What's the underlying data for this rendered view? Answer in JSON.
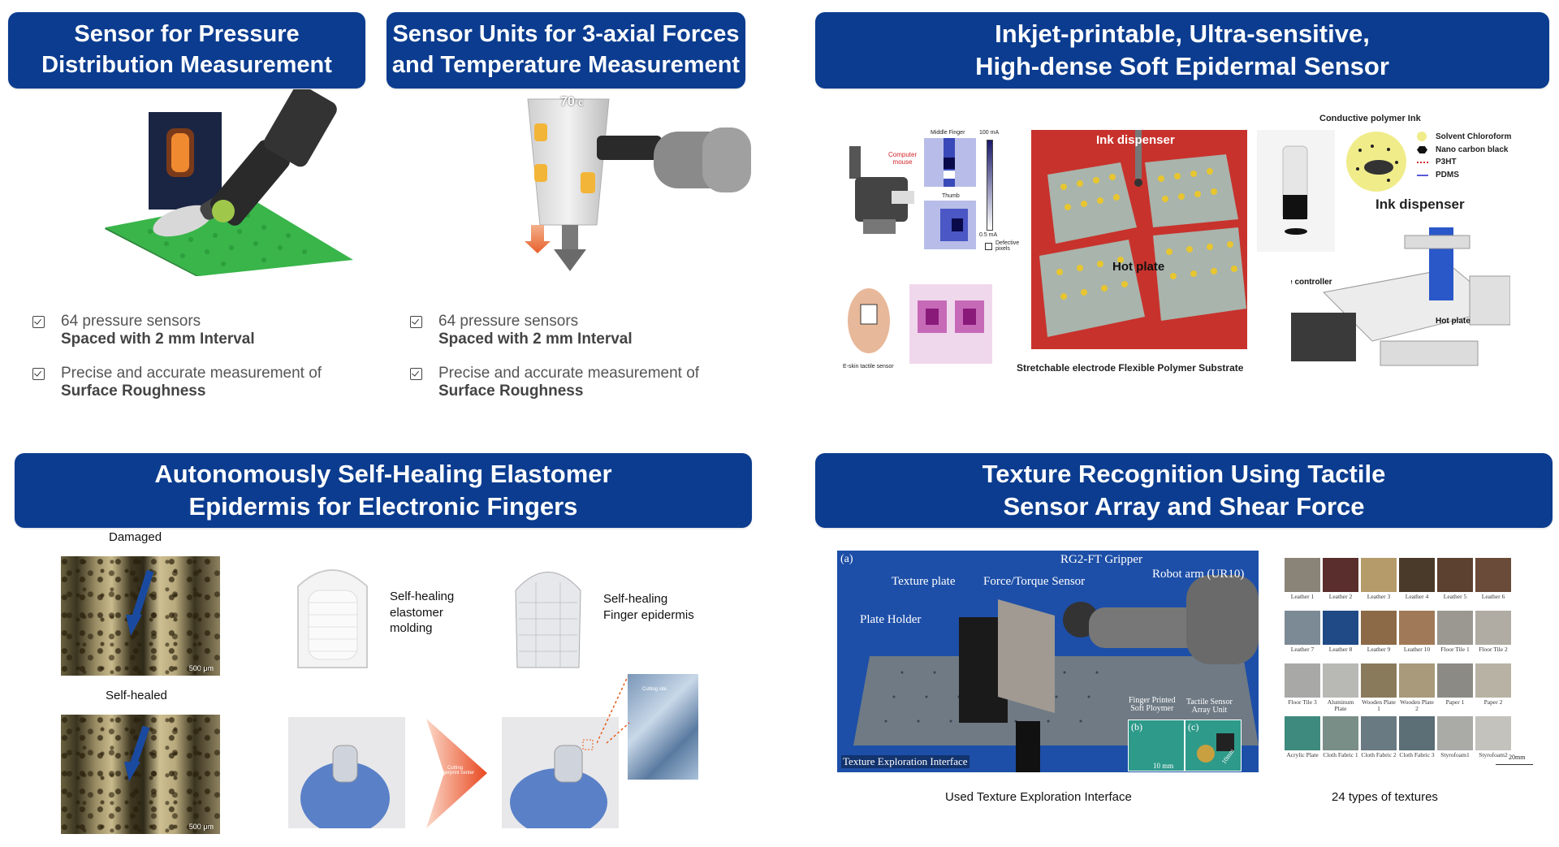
{
  "panels": {
    "pressure": {
      "title": "Sensor for Pressure\nDistribution Measurement",
      "bullets": [
        {
          "line1": "64 pressure sensors",
          "line2": "Spaced with 2 mm Interval"
        },
        {
          "line1": "Precise and accurate measurement of",
          "line2": "Surface Roughness"
        }
      ]
    },
    "triaxial": {
      "title": "Sensor Units for 3-axial Forces\nand Temperature Measurement",
      "temp_label": "70",
      "temp_unit": "℃",
      "bullets": [
        {
          "line1": "64 pressure sensors",
          "line2": "Spaced with 2 mm Interval"
        },
        {
          "line1": "Precise and accurate measurement of",
          "line2": "Surface Roughness"
        }
      ]
    },
    "inkjet": {
      "title": "Inkjet-printable, Ultra-sensitive,\nHigh-dense Soft Epidermal Sensor",
      "labels": {
        "middle_finger": "Middle Finger",
        "thumb": "Thumb",
        "computer_mouse": "Computer\nmouse",
        "max_current": "100 mA",
        "min_current": "0.5 mA",
        "defective": "Defective\npixels",
        "eskin": "E-skin tactile sensor",
        "ink_dispenser_top": "Ink dispenser",
        "hot_plate": "Hot plate",
        "substrate_caption": "Stretchable electrode Flexible Polymer Substrate",
        "conductive_ink": "Conductive polymer Ink",
        "solvent": "Solvent Chloroform",
        "nano_carbon": "Nano carbon black",
        "p3ht": "P3HT",
        "pdms": "PDMS",
        "ink_dispenser_right": "Ink dispenser",
        "nozzle_controller": "Nozzle controller",
        "hot_plate_machine": "Hot plate"
      }
    },
    "selfheal": {
      "title": "Autonomously Self-Healing Elastomer\nEpidermis for Electronic Fingers",
      "damaged": "Damaged",
      "self_healed": "Self-healed",
      "scale": "500 μm",
      "molding": "Self-healing\nelastomer\nmolding",
      "finger_epidermis": "Self-healing\nFinger epidermis",
      "cutting": "Cutting\nFingerprint center",
      "cutting_site": "Cutting site"
    },
    "texture": {
      "title": "Texture Recognition Using Tactile\nSensor Array and Shear Force",
      "photo_labels": {
        "a": "(a)",
        "gripper": "RG2-FT Gripper",
        "robot_arm": "Robot arm (UR10)",
        "texture_plate": "Texture plate",
        "force_sensor": "Force/Torque Sensor",
        "plate_holder": "Plate Holder",
        "interface": "Texture Exploration Interface",
        "finger_printed": "Finger Printed\nSoft Ploymer",
        "tactile_array": "Tactile Sensor\nArray Unit",
        "b": "(b)",
        "c": "(c)",
        "scale_b": "10 mm",
        "scale_c": "10mm"
      },
      "caption_left": "Used Texture Exploration Interface",
      "caption_right": "24 types of textures",
      "scale_bar": "20mm",
      "textures": [
        {
          "label": "Leather 1",
          "color": "#8a8478"
        },
        {
          "label": "Leather 2",
          "color": "#5a2e2c"
        },
        {
          "label": "Leather 3",
          "color": "#b59a6a"
        },
        {
          "label": "Leather 4",
          "color": "#4a3a2a"
        },
        {
          "label": "Leather 5",
          "color": "#5c4030"
        },
        {
          "label": "Leather 6",
          "color": "#6a4a38"
        },
        {
          "label": "Leather 7",
          "color": "#7c8a96"
        },
        {
          "label": "Leather 8",
          "color": "#1f4a86"
        },
        {
          "label": "Leather 9",
          "color": "#8c6a48"
        },
        {
          "label": "Leather 10",
          "color": "#a07a58"
        },
        {
          "label": "Floor Tile 1",
          "color": "#9a9890"
        },
        {
          "label": "Floor Tile 2",
          "color": "#b0aca4"
        },
        {
          "label": "Floor Tile 3",
          "color": "#a8a8a6"
        },
        {
          "label": "Aluminum Plate",
          "color": "#b8b8b4"
        },
        {
          "label": "Wooden Plate 1",
          "color": "#8a7a5c"
        },
        {
          "label": "Wooden Plate 2",
          "color": "#a89a7a"
        },
        {
          "label": "Paper 1",
          "color": "#8c8a84"
        },
        {
          "label": "Paper 2",
          "color": "#b8b2a4"
        },
        {
          "label": "Acrylic Plate",
          "color": "#3e8a7e"
        },
        {
          "label": "Cloth Fabric 1",
          "color": "#7a8e88"
        },
        {
          "label": "Cloth Fabric 2",
          "color": "#6a7a82"
        },
        {
          "label": "Cloth Fabric 3",
          "color": "#5c6e76"
        },
        {
          "label": "Styrofoam1",
          "color": "#aaaaa6"
        },
        {
          "label": "Styrofoam2",
          "color": "#c4c2bc"
        }
      ]
    }
  },
  "colors": {
    "banner": "#0b3c8f",
    "green_pad": "#39b54a",
    "hot_plate_red": "#c8322c"
  }
}
